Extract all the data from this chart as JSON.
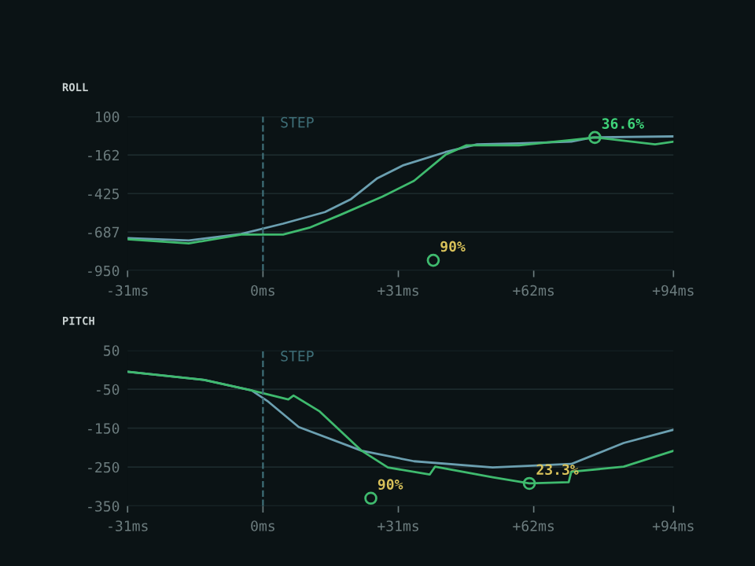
{
  "chart_data": [
    {
      "type": "line",
      "title": "ROLL",
      "x": [
        -31,
        -17,
        -5,
        4.6,
        14.2,
        20.2,
        26.2,
        32.2,
        41.8,
        49,
        58.6,
        70.6,
        75.4,
        94
      ],
      "series": [
        {
          "color": "#6b9fb0",
          "values": [
            -729,
            -745,
            -701,
            -630,
            -551,
            -462,
            -320,
            -231,
            -142,
            -89,
            -82,
            -71,
            -42,
            -35
          ]
        },
        {
          "color": "#3fba6e",
          "x": [
            -31,
            -17,
            -5,
            4.6,
            10.6,
            17.8,
            27.4,
            34.6,
            41.8,
            46.6,
            58.6,
            70.6,
            76,
            89.8,
            94
          ],
          "values": [
            -737,
            -765,
            -705,
            -705,
            -658,
            -569,
            -445,
            -338,
            -160,
            -96,
            -96,
            -60,
            -42,
            -89,
            -71
          ]
        }
      ],
      "xlim": [
        -31,
        94
      ],
      "xticks": [
        {
          "value": -31,
          "label": "-31ms"
        },
        {
          "value": 0,
          "label": "0ms"
        },
        {
          "value": 31,
          "label": "+31ms"
        },
        {
          "value": 62,
          "label": "+62ms"
        },
        {
          "value": 94,
          "label": "+94ms"
        }
      ],
      "ylim": [
        -950,
        100
      ],
      "yticks": [
        100,
        -162,
        -425,
        -687,
        -950
      ],
      "grid": "y",
      "ref_lines": [
        {
          "axis": "x",
          "value": 0,
          "label": "STEP",
          "color": "#3f6f78",
          "line_style": "dashed"
        }
      ],
      "annotations": [
        {
          "text": "36.6%",
          "x": 76,
          "y": -42
        },
        {
          "text": "90%",
          "x": 39,
          "y": -880
        }
      ]
    },
    {
      "type": "line",
      "title": "PITCH",
      "x": [
        -31,
        -13.4,
        -2.6,
        1,
        8.2,
        22.6,
        34.6,
        52.6,
        70.6,
        76.6,
        82.6,
        94
      ],
      "series": [
        {
          "color": "#6b9fb0",
          "values": [
            -5,
            -26,
            -53,
            -80,
            -147,
            -208,
            -235,
            -251,
            -242,
            -215,
            -188,
            -154
          ]
        },
        {
          "color": "#3fba6e",
          "x": [
            -31,
            -13.4,
            -2.6,
            5.8,
            7,
            13,
            22.6,
            28.6,
            38.2,
            39.4,
            52.6,
            61,
            70,
            70.6,
            82.6,
            94
          ],
          "values": [
            -5,
            -26,
            -53,
            -76,
            -66,
            -107,
            -208,
            -251,
            -269,
            -249,
            -276,
            -292,
            -289,
            -262,
            -249,
            -208
          ]
        }
      ],
      "xlim": [
        -31,
        94
      ],
      "xticks": [
        {
          "value": -31,
          "label": "-31ms"
        },
        {
          "value": 0,
          "label": "0ms"
        },
        {
          "value": 31,
          "label": "+31ms"
        },
        {
          "value": 62,
          "label": "+62ms"
        },
        {
          "value": 94,
          "label": "+94ms"
        }
      ],
      "ylim": [
        -350,
        50
      ],
      "yticks": [
        50,
        -50,
        -150,
        -250,
        -350
      ],
      "grid": "y",
      "ref_lines": [
        {
          "axis": "x",
          "value": 0,
          "label": "STEP",
          "color": "#3f6f78",
          "line_style": "dashed"
        }
      ],
      "annotations": [
        {
          "text": "23.3%",
          "x": 61,
          "y": -292
        },
        {
          "text": "90%",
          "x": 24.7,
          "y": -330
        }
      ]
    }
  ]
}
